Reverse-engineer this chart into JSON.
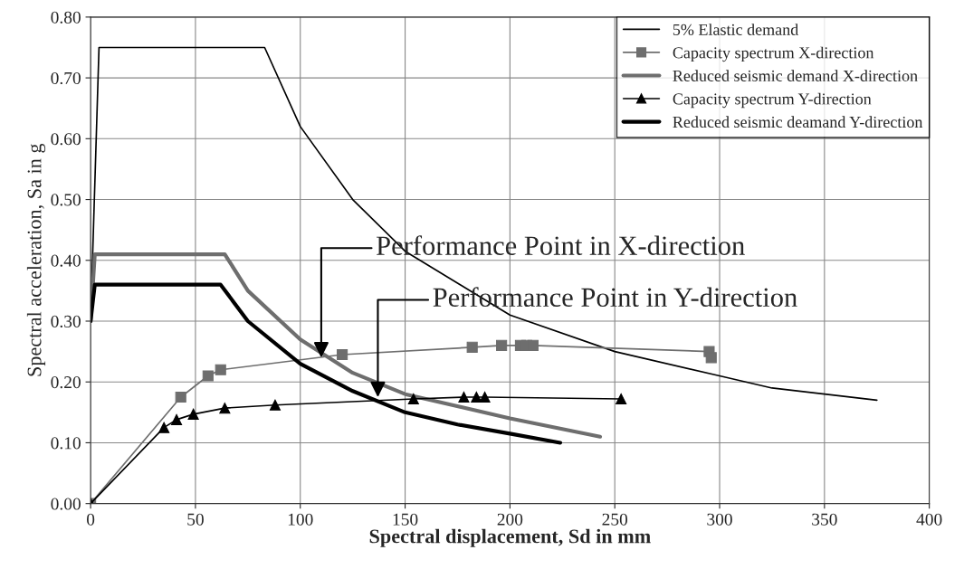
{
  "chart_data": {
    "type": "line",
    "xlabel": "Spectral displacement, Sd in mm",
    "ylabel": "Spectral acceleration, Sa in g",
    "xlim": [
      0,
      400
    ],
    "xticks": [
      0,
      50,
      100,
      150,
      200,
      250,
      300,
      350,
      400
    ],
    "ylim": [
      0,
      0.8
    ],
    "yticks": [
      {
        "value": 0,
        "label": "0.00"
      },
      {
        "value": 0.1,
        "label": "0.10"
      },
      {
        "value": 0.2,
        "label": "0.20"
      },
      {
        "value": 0.3,
        "label": "0.30"
      },
      {
        "value": 0.4,
        "label": "0.40"
      },
      {
        "value": 0.5,
        "label": "0.50"
      },
      {
        "value": 0.6,
        "label": "0.60"
      },
      {
        "value": 0.7,
        "label": "0.70"
      },
      {
        "value": 0.8,
        "label": "0.80"
      }
    ],
    "grid": true,
    "legend": "top right",
    "series": [
      {
        "name": "5% Elastic demand",
        "color": "#000000",
        "marker": "none",
        "x": [
          0,
          4,
          83,
          100,
          125,
          150,
          200,
          250,
          300,
          325,
          375
        ],
        "values": [
          0.3,
          0.75,
          0.75,
          0.62,
          0.5,
          0.415,
          0.31,
          0.25,
          0.21,
          0.19,
          0.17
        ]
      },
      {
        "name": "Capacity spectrum X-direction",
        "color": "#6e6e6e",
        "marker": "square",
        "x": [
          0,
          43,
          56,
          62,
          120,
          182,
          196,
          205,
          208,
          211,
          295,
          296
        ],
        "values": [
          0,
          0.175,
          0.21,
          0.22,
          0.245,
          0.257,
          0.26,
          0.26,
          0.26,
          0.26,
          0.25,
          0.24
        ]
      },
      {
        "name": "Reduced seismic demand X-direction",
        "color": "#6e6e6e",
        "marker": "none",
        "x": [
          0,
          2,
          64,
          75,
          100,
          125,
          150,
          200,
          243
        ],
        "values": [
          0.3,
          0.41,
          0.41,
          0.35,
          0.27,
          0.215,
          0.18,
          0.14,
          0.11
        ]
      },
      {
        "name": "Capacity spectrum Y-direction",
        "color": "#000000",
        "marker": "triangle",
        "x": [
          0,
          35,
          41,
          49,
          64,
          88,
          154,
          178,
          184,
          188,
          253
        ],
        "values": [
          0,
          0.125,
          0.138,
          0.147,
          0.157,
          0.162,
          0.172,
          0.175,
          0.175,
          0.175,
          0.172
        ]
      },
      {
        "name": "Reduced seismic deamand Y-direction",
        "color": "#000000",
        "marker": "none",
        "x": [
          0,
          2,
          62,
          75,
          100,
          125,
          150,
          175,
          200,
          224
        ],
        "values": [
          0.3,
          0.36,
          0.36,
          0.3,
          0.23,
          0.185,
          0.15,
          0.13,
          0.115,
          0.1
        ]
      }
    ],
    "annotations": [
      {
        "text": "Performance Point in X-direction",
        "x": 110,
        "y": 0.24
      },
      {
        "text": "Performance Point in Y-direction",
        "x": 137,
        "y": 0.175
      }
    ]
  }
}
